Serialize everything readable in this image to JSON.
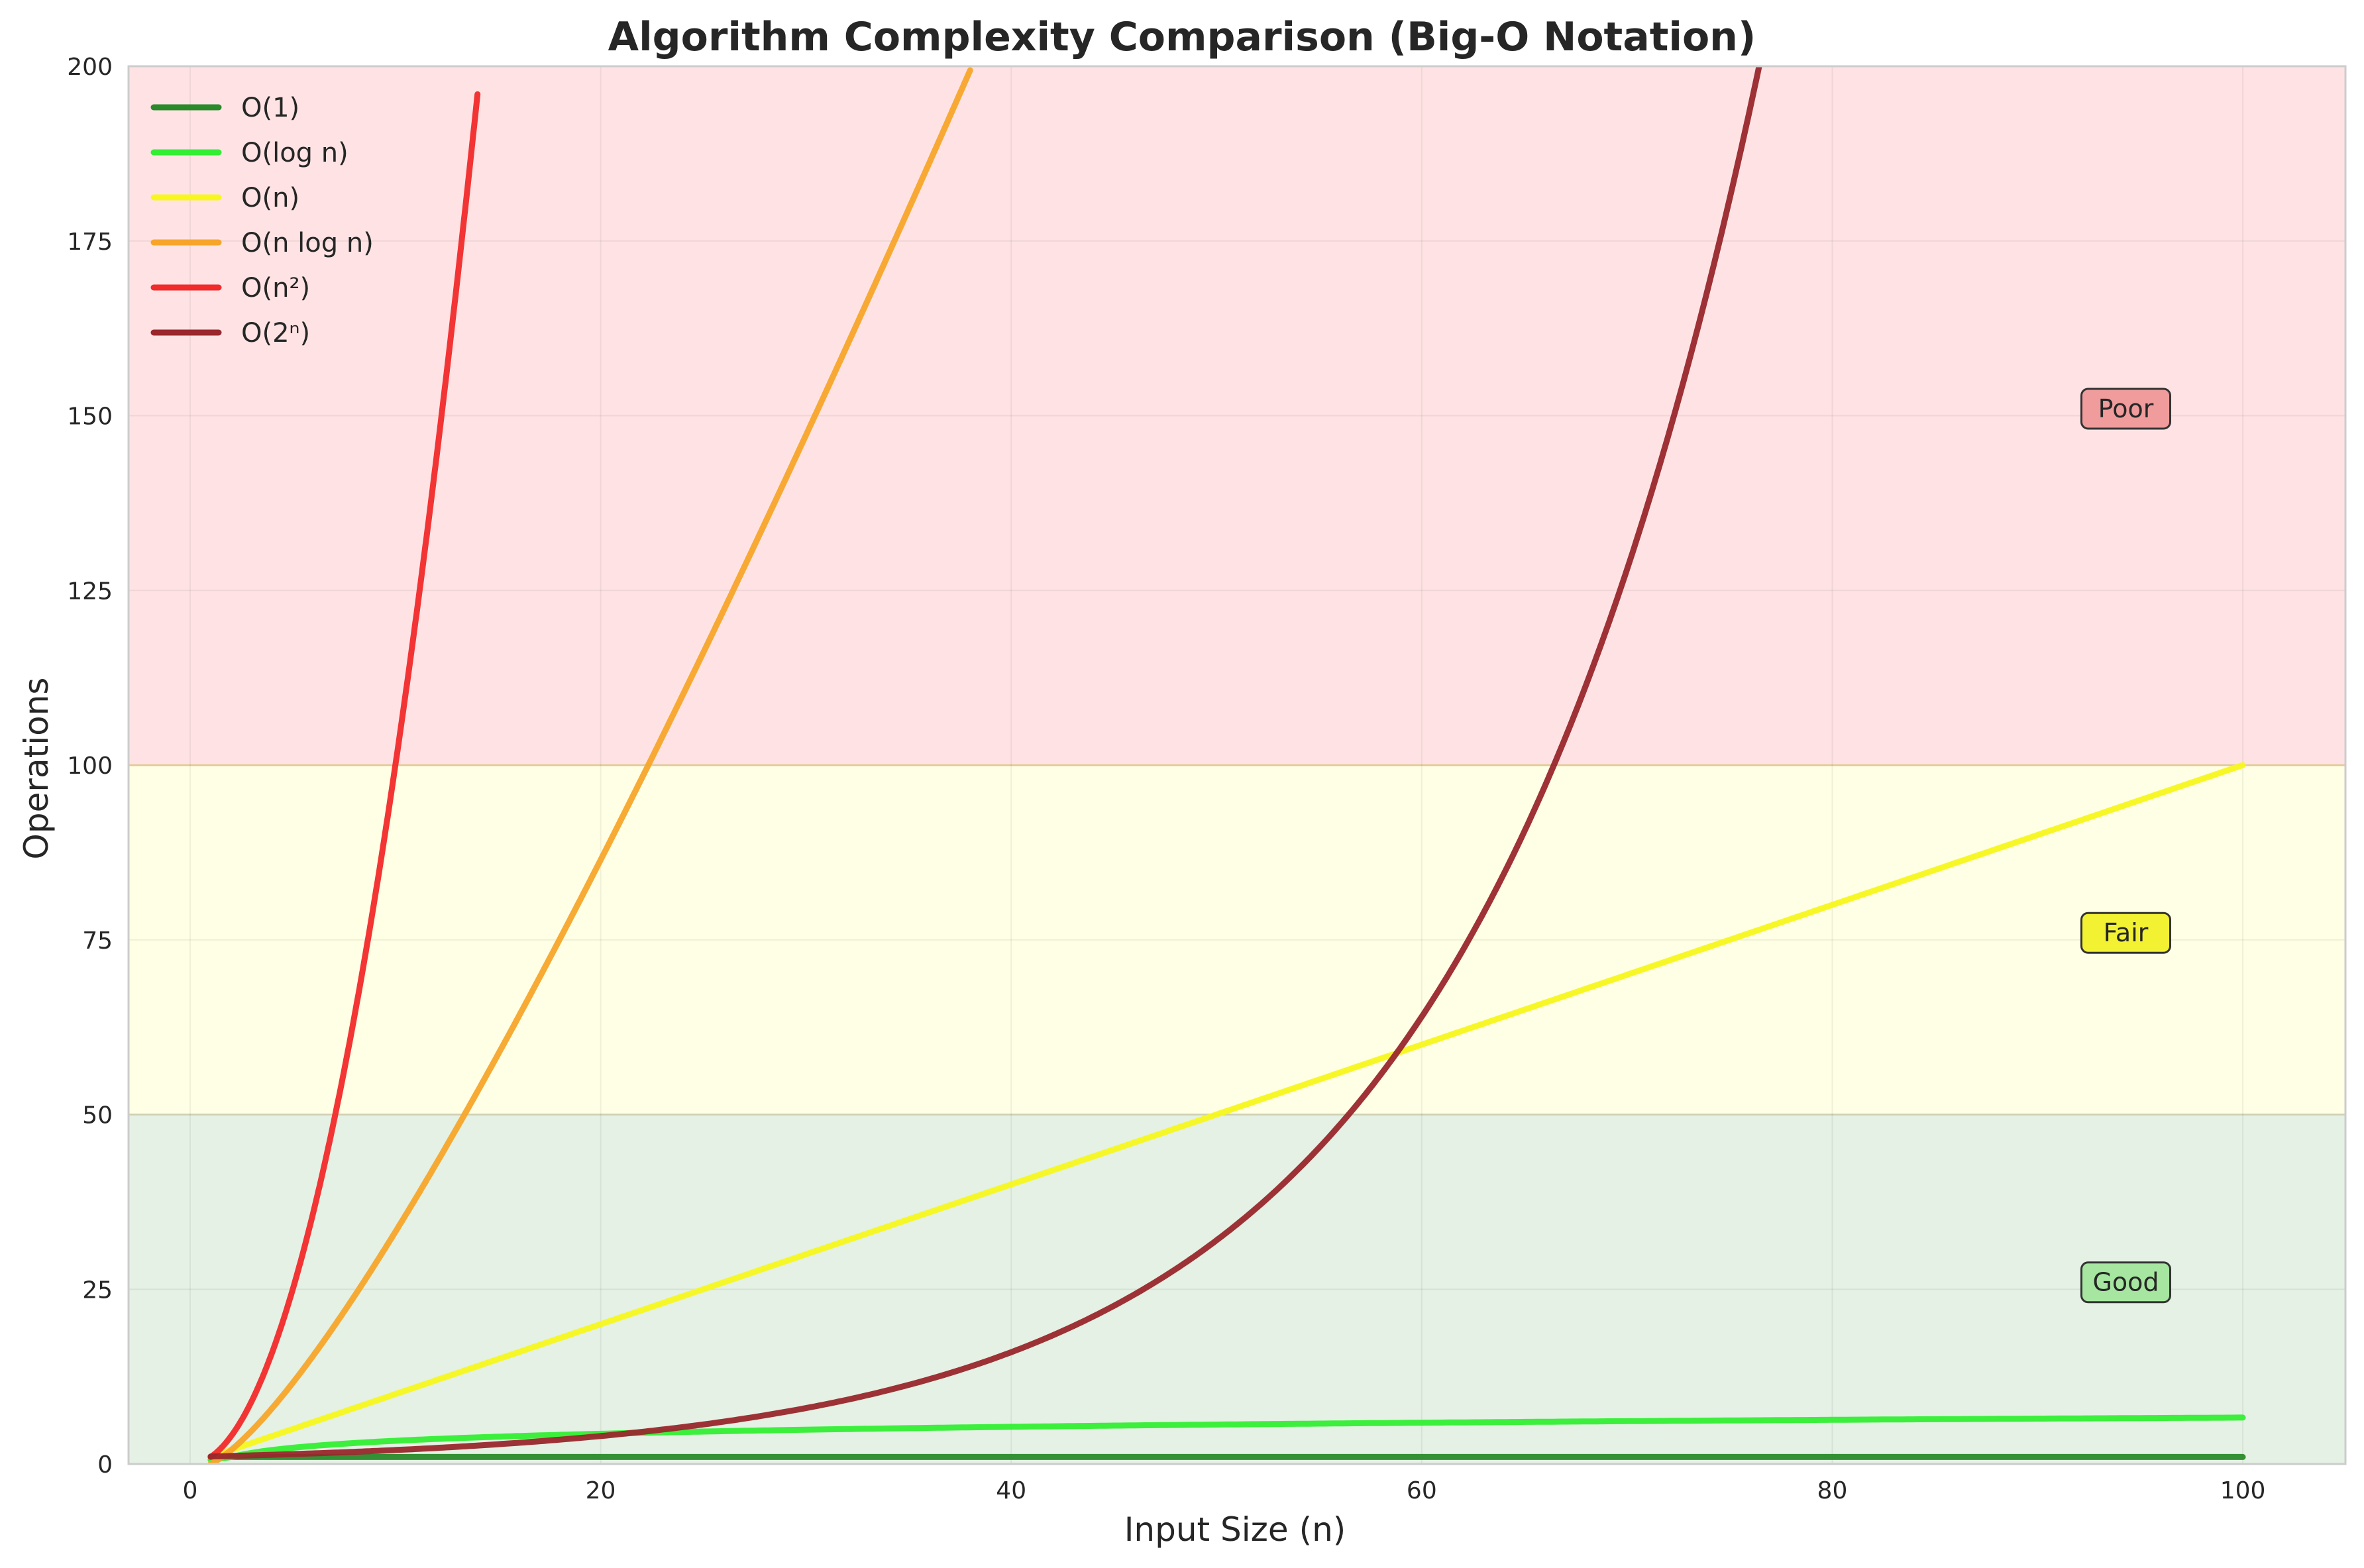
{
  "chart_data": {
    "type": "line",
    "title": "Algorithm Complexity Comparison (Big-O Notation)",
    "xlabel": "Input Size (n)",
    "ylabel": "Operations",
    "xlim": [
      -3,
      105
    ],
    "ylim": [
      0,
      200
    ],
    "xticks": [
      0,
      20,
      40,
      60,
      80,
      100
    ],
    "yticks": [
      0,
      25,
      50,
      75,
      100,
      125,
      150,
      175,
      200
    ],
    "grid": true,
    "legend_position": "top-left",
    "zones": [
      {
        "name": "Good",
        "y_from": 0,
        "y_to": 50,
        "color": "#e4f1e4",
        "label_bg": "#a6e6a0",
        "label_y": 26
      },
      {
        "name": "Fair",
        "y_from": 50,
        "y_to": 100,
        "color": "#feffe4",
        "label_bg": "#f2f233",
        "label_y": 76
      },
      {
        "name": "Poor",
        "y_from": 100,
        "y_to": 200,
        "color": "#ffe3e4",
        "label_bg": "#f09c9c",
        "label_y": 151
      }
    ],
    "series": [
      {
        "name": "O(1)",
        "color": "#2a8a2a",
        "x": [
          1,
          25,
          50,
          75,
          100
        ],
        "values": [
          1,
          1,
          1,
          1,
          1
        ]
      },
      {
        "name": "O(log n)",
        "color": "#33ee33",
        "x": [
          1,
          2,
          5,
          10,
          20,
          30,
          50,
          75,
          100
        ],
        "values": [
          0.6,
          1,
          2.3,
          3.3,
          4.3,
          4.9,
          5.6,
          6.2,
          6.6
        ]
      },
      {
        "name": "O(n)",
        "color": "#f7f71e",
        "x": [
          1,
          25,
          50,
          75,
          100
        ],
        "values": [
          1,
          25,
          50,
          75,
          100
        ]
      },
      {
        "name": "O(n log n)",
        "color": "#f7a52a",
        "x": [
          1,
          2,
          5,
          10,
          15,
          20,
          25,
          30,
          35,
          38
        ],
        "values": [
          0.5,
          2,
          11.6,
          33.2,
          58.6,
          86.4,
          116.1,
          147.2,
          179.6,
          199.4
        ]
      },
      {
        "name": "O(n²)",
        "color": "#f22a2a",
        "x": [
          1,
          2,
          4,
          6,
          8,
          10,
          12,
          14
        ],
        "values": [
          1,
          4,
          16,
          36,
          64,
          100,
          144,
          196
        ]
      },
      {
        "name": "O(2ⁿ)",
        "color": "#99272c",
        "x": [
          1,
          10,
          20,
          30,
          40,
          45,
          50,
          55,
          60,
          65,
          70,
          75,
          76.5
        ],
        "values": [
          1,
          2,
          4,
          8,
          16,
          22.6,
          32,
          45.3,
          64,
          90.5,
          128,
          181,
          200.8
        ]
      }
    ]
  }
}
